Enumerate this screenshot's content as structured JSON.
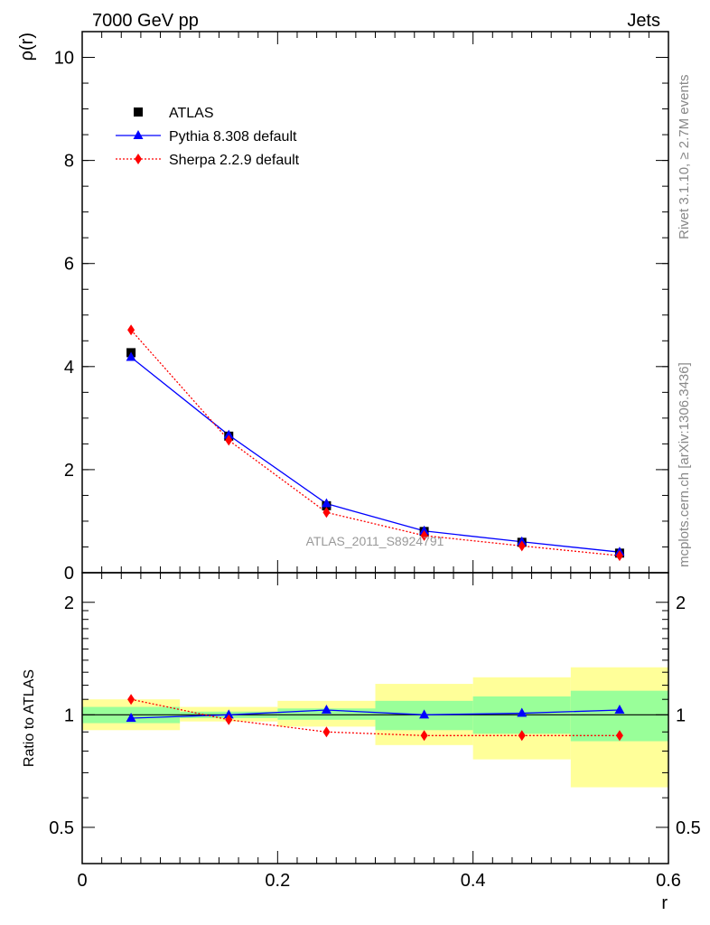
{
  "header": {
    "left": "7000 GeV pp",
    "right": "Jets"
  },
  "side_labels": {
    "rivet": "Rivet 3.1.10, ≥ 2.7M events",
    "mcplots": "mcplots.cern.ch [arXiv:1306.3436]"
  },
  "watermark": "ATLAS_2011_S8924791",
  "colors": {
    "atlas": "#000000",
    "pythia": "#0000ff",
    "sherpa": "#ff0000",
    "band_inner": "#99ff99",
    "band_outer": "#ffff99"
  },
  "chart_data": [
    {
      "type": "line",
      "ylabel": "ρ(r)",
      "xlim": [
        0,
        0.6
      ],
      "ylim": [
        0,
        10.5
      ],
      "y_ticks": [
        0,
        2,
        4,
        6,
        8,
        10
      ],
      "x": [
        0.05,
        0.15,
        0.25,
        0.35,
        0.45,
        0.55
      ],
      "legend": {
        "placement": "top-left"
      },
      "series": [
        {
          "name": "ATLAS",
          "marker": "square",
          "values": [
            4.27,
            2.65,
            1.3,
            0.8,
            0.59,
            0.38
          ]
        },
        {
          "name": "Pythia 8.308 default",
          "marker": "triangle",
          "line": "solid",
          "values": [
            4.18,
            2.67,
            1.34,
            0.81,
            0.6,
            0.4
          ]
        },
        {
          "name": "Sherpa 2.2.9 default",
          "marker": "diamond",
          "line": "dotted",
          "values": [
            4.71,
            2.57,
            1.17,
            0.72,
            0.52,
            0.33
          ]
        }
      ]
    },
    {
      "type": "line",
      "ylabel": "Ratio to ATLAS",
      "xlabel": "r",
      "xlim": [
        0,
        0.6
      ],
      "ylim": [
        0.4,
        2.4
      ],
      "y_scale": "log",
      "y_ticks": [
        0.5,
        1,
        2
      ],
      "x_ticks": [
        0,
        0.2,
        0.4,
        0.6
      ],
      "x": [
        0.05,
        0.15,
        0.25,
        0.35,
        0.45,
        0.55
      ],
      "bands": {
        "bin_edges": [
          0,
          0.1,
          0.2,
          0.3,
          0.4,
          0.5,
          0.6
        ],
        "inner": [
          [
            0.95,
            1.05
          ],
          [
            0.98,
            1.02
          ],
          [
            0.97,
            1.04
          ],
          [
            0.91,
            1.09
          ],
          [
            0.89,
            1.12
          ],
          [
            0.85,
            1.16
          ]
        ],
        "outer": [
          [
            0.91,
            1.1
          ],
          [
            0.96,
            1.05
          ],
          [
            0.93,
            1.09
          ],
          [
            0.83,
            1.21
          ],
          [
            0.76,
            1.26
          ],
          [
            0.64,
            1.34
          ]
        ]
      },
      "series": [
        {
          "name": "Pythia 8.308 default",
          "values": [
            0.98,
            1.0,
            1.03,
            1.0,
            1.01,
            1.03
          ]
        },
        {
          "name": "Sherpa 2.2.9 default",
          "values": [
            1.1,
            0.97,
            0.9,
            0.88,
            0.88,
            0.88
          ]
        }
      ]
    }
  ]
}
